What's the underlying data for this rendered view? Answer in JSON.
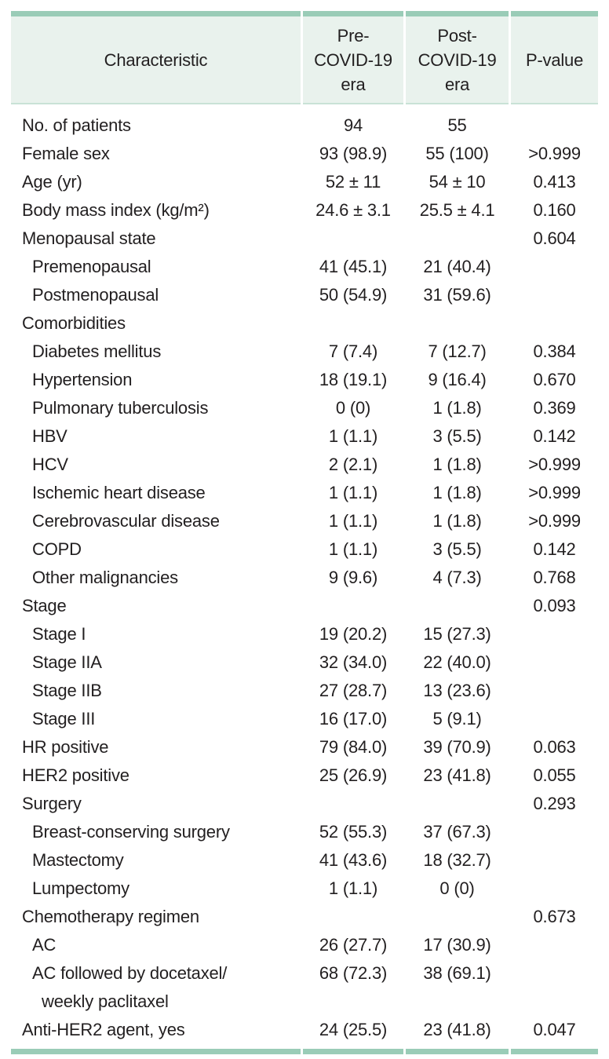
{
  "theme": {
    "rule_color": "#9accb7",
    "header_background": "#e9f2ed",
    "header_underline": "#c9e2d6",
    "text_color": "#221f20",
    "page_background": "#ffffff"
  },
  "table": {
    "header": {
      "characteristic": "Characteristic",
      "pre": "Pre-\nCOVID-19\nera",
      "post": "Post-\nCOVID-19\nera",
      "p": "P-value"
    },
    "rows": [
      {
        "label": "No. of patients",
        "indent": 0,
        "pre": "94",
        "post": "55",
        "p": ""
      },
      {
        "label": "Female sex",
        "indent": 0,
        "pre": "93 (98.9)",
        "post": "55 (100)",
        "p": ">0.999"
      },
      {
        "label": "Age (yr)",
        "indent": 0,
        "pre": "52 ± 11",
        "post": "54 ± 10",
        "p": "0.413"
      },
      {
        "label": "Body mass index (kg/m²)",
        "indent": 0,
        "pre": "24.6 ± 3.1",
        "post": "25.5 ± 4.1",
        "p": "0.160"
      },
      {
        "label": "Menopausal state",
        "indent": 0,
        "pre": "",
        "post": "",
        "p": "0.604"
      },
      {
        "label": "Premenopausal",
        "indent": 1,
        "pre": "41 (45.1)",
        "post": "21 (40.4)",
        "p": ""
      },
      {
        "label": "Postmenopausal",
        "indent": 1,
        "pre": "50 (54.9)",
        "post": "31 (59.6)",
        "p": ""
      },
      {
        "label": "Comorbidities",
        "indent": 0,
        "pre": "",
        "post": "",
        "p": ""
      },
      {
        "label": "Diabetes mellitus",
        "indent": 1,
        "pre": "7 (7.4)",
        "post": "7 (12.7)",
        "p": "0.384"
      },
      {
        "label": "Hypertension",
        "indent": 1,
        "pre": "18 (19.1)",
        "post": "9 (16.4)",
        "p": "0.670"
      },
      {
        "label": "Pulmonary tuberculosis",
        "indent": 1,
        "pre": "0 (0)",
        "post": "1 (1.8)",
        "p": "0.369"
      },
      {
        "label": "HBV",
        "indent": 1,
        "pre": "1 (1.1)",
        "post": "3 (5.5)",
        "p": "0.142"
      },
      {
        "label": "HCV",
        "indent": 1,
        "pre": "2 (2.1)",
        "post": "1 (1.8)",
        "p": ">0.999"
      },
      {
        "label": "Ischemic heart disease",
        "indent": 1,
        "pre": "1 (1.1)",
        "post": "1 (1.8)",
        "p": ">0.999"
      },
      {
        "label": "Cerebrovascular disease",
        "indent": 1,
        "pre": "1 (1.1)",
        "post": "1 (1.8)",
        "p": ">0.999"
      },
      {
        "label": "COPD",
        "indent": 1,
        "pre": "1 (1.1)",
        "post": "3 (5.5)",
        "p": "0.142"
      },
      {
        "label": "Other malignancies",
        "indent": 1,
        "pre": "9 (9.6)",
        "post": "4 (7.3)",
        "p": "0.768"
      },
      {
        "label": "Stage",
        "indent": 0,
        "pre": "",
        "post": "",
        "p": "0.093"
      },
      {
        "label": "Stage I",
        "indent": 1,
        "pre": "19 (20.2)",
        "post": "15 (27.3)",
        "p": ""
      },
      {
        "label": "Stage IIA",
        "indent": 1,
        "pre": "32 (34.0)",
        "post": "22 (40.0)",
        "p": ""
      },
      {
        "label": "Stage IIB",
        "indent": 1,
        "pre": "27 (28.7)",
        "post": "13 (23.6)",
        "p": ""
      },
      {
        "label": "Stage III",
        "indent": 1,
        "pre": "16 (17.0)",
        "post": "5 (9.1)",
        "p": ""
      },
      {
        "label": "HR positive",
        "indent": 0,
        "pre": "79 (84.0)",
        "post": "39 (70.9)",
        "p": "0.063"
      },
      {
        "label": "HER2 positive",
        "indent": 0,
        "pre": "25 (26.9)",
        "post": "23 (41.8)",
        "p": "0.055"
      },
      {
        "label": "Surgery",
        "indent": 0,
        "pre": "",
        "post": "",
        "p": "0.293"
      },
      {
        "label": "Breast-conserving surgery",
        "indent": 1,
        "pre": "52 (55.3)",
        "post": "37 (67.3)",
        "p": ""
      },
      {
        "label": "Mastectomy",
        "indent": 1,
        "pre": "41 (43.6)",
        "post": "18 (32.7)",
        "p": ""
      },
      {
        "label": "Lumpectomy",
        "indent": 1,
        "pre": "1 (1.1)",
        "post": "0 (0)",
        "p": ""
      },
      {
        "label": "Chemotherapy regimen",
        "indent": 0,
        "pre": "",
        "post": "",
        "p": "0.673"
      },
      {
        "label": "AC",
        "indent": 1,
        "pre": "26 (27.7)",
        "post": "17 (30.9)",
        "p": ""
      },
      {
        "label": "AC followed by docetaxel/",
        "label2": "weekly paclitaxel",
        "indent": 1,
        "pre": "68 (72.3)",
        "post": "38 (69.1)",
        "p": ""
      },
      {
        "label": "Anti-HER2 agent, yes",
        "indent": 0,
        "pre": "24 (25.5)",
        "post": "23 (41.8)",
        "p": "0.047"
      }
    ]
  }
}
